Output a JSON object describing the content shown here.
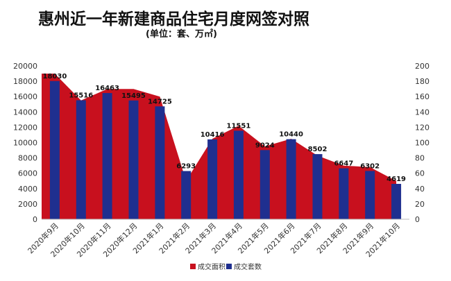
{
  "chart_data": {
    "type": "bar",
    "title": "惠州近一年新建商品住宅月度网签对照",
    "subtitle": "(单位：套、万㎡)",
    "categories": [
      "2020年9月",
      "2020年10月",
      "2020年11月",
      "2020年12月",
      "2021年1月",
      "2021年2月",
      "2021年3月",
      "2021年4月",
      "2021年5月",
      "2021年6月",
      "2021年7月",
      "2021年8月",
      "2021年9月",
      "2021年10月"
    ],
    "series": [
      {
        "name": "成交套数",
        "type": "bar",
        "axis": "left",
        "color": "#1f2f8f",
        "values": [
          18030,
          15516,
          16463,
          15495,
          14725,
          6293,
          10416,
          11551,
          9024,
          10440,
          8502,
          6647,
          6302,
          4619
        ]
      },
      {
        "name": "成交面积",
        "type": "area",
        "axis": "right",
        "color": "#c8101e",
        "values": [
          190,
          155,
          170,
          170,
          160,
          50,
          105,
          122,
          95,
          105,
          83,
          70,
          68,
          50
        ]
      }
    ],
    "ylim_left": [
      0,
      20000
    ],
    "yticks_left": [
      0,
      2000,
      4000,
      6000,
      8000,
      10000,
      12000,
      14000,
      16000,
      18000,
      20000
    ],
    "ylim_right": [
      0,
      200
    ],
    "yticks_right": [
      0,
      20,
      40,
      60,
      80,
      100,
      120,
      140,
      160,
      180,
      200
    ],
    "legend_position": "bottom-right",
    "grid": false
  }
}
